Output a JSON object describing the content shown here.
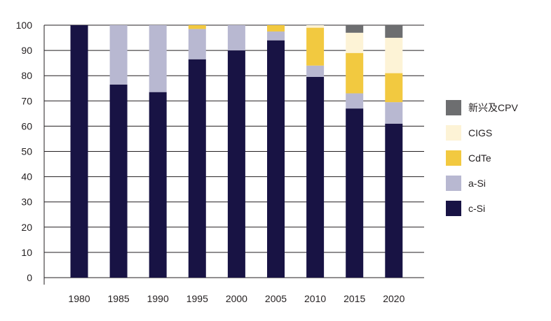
{
  "chart_data": {
    "type": "bar",
    "stacked": true,
    "title": "",
    "xlabel": "",
    "ylabel": "",
    "ylim": [
      0,
      100
    ],
    "yticks": [
      0,
      10,
      20,
      30,
      40,
      50,
      60,
      70,
      80,
      90,
      100
    ],
    "grid": true,
    "legend_position": "right",
    "categories": [
      "1980",
      "1985",
      "1990",
      "1995",
      "2000",
      "2005",
      "2010",
      "2015",
      "2020"
    ],
    "series": [
      {
        "name": "c-Si",
        "color": "#181344",
        "values": [
          100,
          76.5,
          73.5,
          86.5,
          90,
          94,
          79.5,
          67,
          61
        ]
      },
      {
        "name": "a-Si",
        "color": "#b8b8d1",
        "values": [
          0,
          23.5,
          26.5,
          12,
          10,
          3.5,
          4.5,
          6,
          8.5
        ]
      },
      {
        "name": "CdTe",
        "color": "#f2c940",
        "values": [
          0,
          0,
          0,
          1.5,
          0,
          2.5,
          15,
          16,
          11.5
        ]
      },
      {
        "name": "CIGS",
        "color": "#fdf3d6",
        "values": [
          0,
          0,
          0,
          0,
          0,
          0,
          1,
          8,
          14
        ]
      },
      {
        "name": "新兴及CPV",
        "color": "#6d6e70",
        "values": [
          0,
          0,
          0,
          0,
          0,
          0,
          0,
          3,
          5
        ]
      }
    ],
    "legend_order": [
      4,
      3,
      2,
      1,
      0
    ]
  }
}
